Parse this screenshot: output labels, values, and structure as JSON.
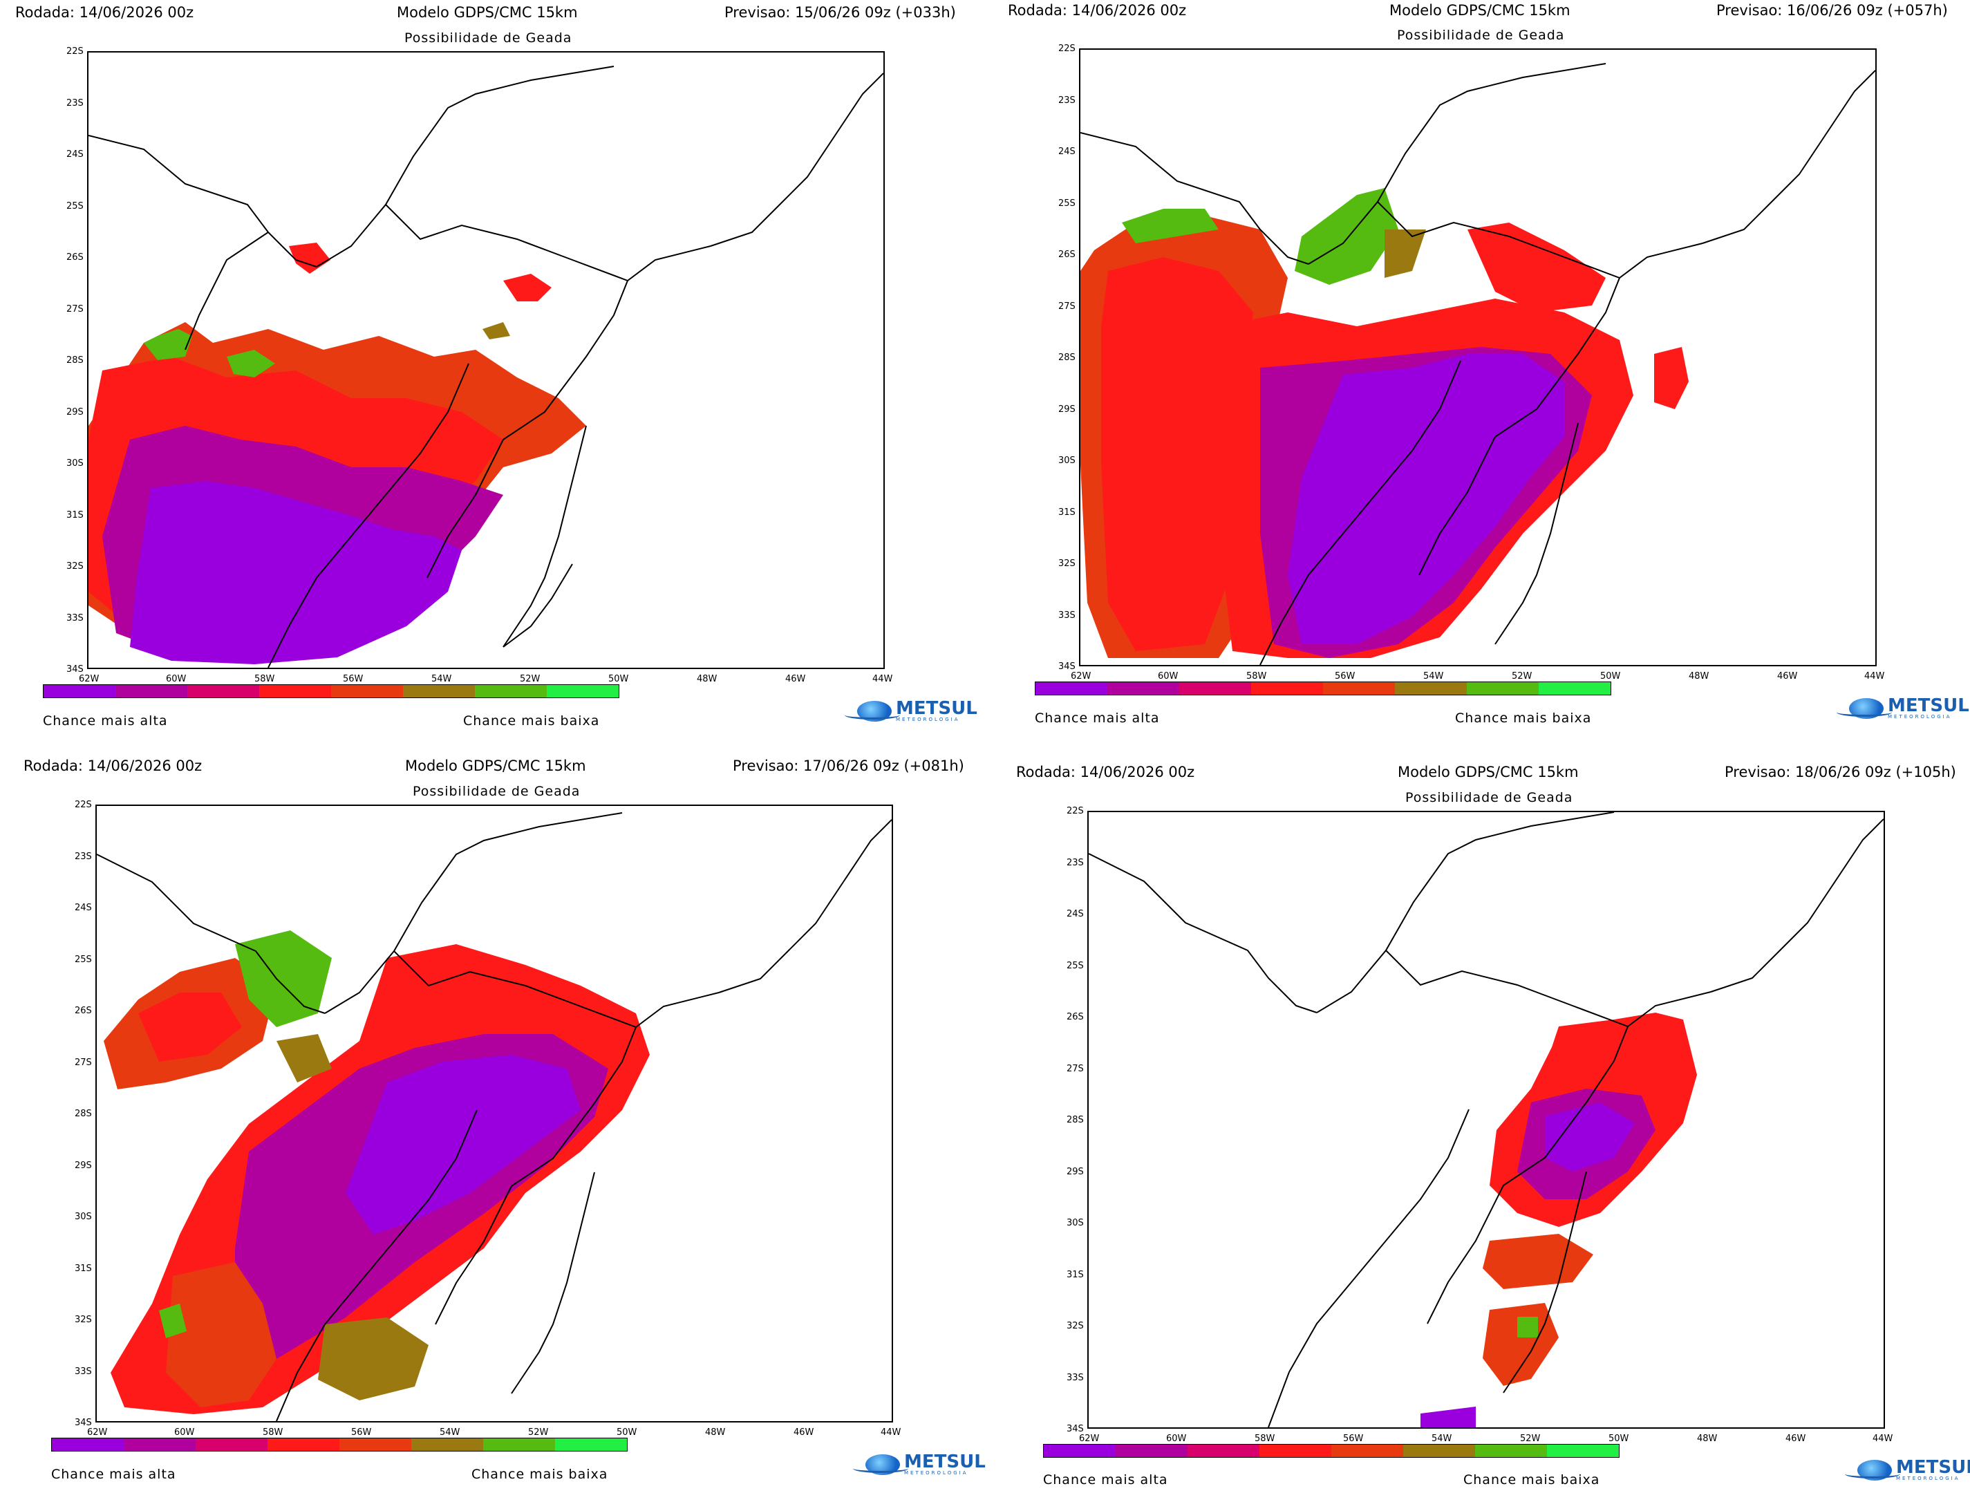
{
  "colors": {
    "scale": [
      "#9900dd",
      "#b0009e",
      "#d8006a",
      "#ff1a1a",
      "#e83a10",
      "#9a7a10",
      "#55bb10",
      "#22ee44"
    ],
    "frame": "#000000",
    "logo": "#1a5fb0"
  },
  "lat_labels": [
    "22S",
    "23S",
    "24S",
    "25S",
    "26S",
    "27S",
    "28S",
    "29S",
    "30S",
    "31S",
    "32S",
    "33S",
    "34S"
  ],
  "lon_labels": [
    "62W",
    "60W",
    "58W",
    "56W",
    "54W",
    "52W",
    "50W",
    "48W",
    "46W",
    "44W"
  ],
  "legend": {
    "high": "Chance mais alta",
    "low": "Chance mais baixa"
  },
  "logo": {
    "name": "METSUL",
    "sub": "METEOROLOGIA"
  },
  "panels": [
    {
      "rodada": "Rodada: 14/06/2026 00z",
      "modelo": "Modelo GDPS/CMC 15km",
      "previsao": "Previsao: 15/06/26 09z (+033h)",
      "subtitle": "Possibilidade de Geada"
    },
    {
      "rodada": "Rodada: 14/06/2026 00z",
      "modelo": "Modelo GDPS/CMC 15km",
      "previsao": "Previsao: 16/06/26 09z (+057h)",
      "subtitle": "Possibilidade de Geada"
    },
    {
      "rodada": "Rodada: 14/06/2026 00z",
      "modelo": "Modelo GDPS/CMC 15km",
      "previsao": "Previsao: 17/06/26 09z (+081h)",
      "subtitle": "Possibilidade de Geada"
    },
    {
      "rodada": "Rodada: 14/06/2026 00z",
      "modelo": "Modelo GDPS/CMC 15km",
      "previsao": "Previsao: 18/06/26 09z (+105h)",
      "subtitle": "Possibilidade de Geada"
    }
  ]
}
